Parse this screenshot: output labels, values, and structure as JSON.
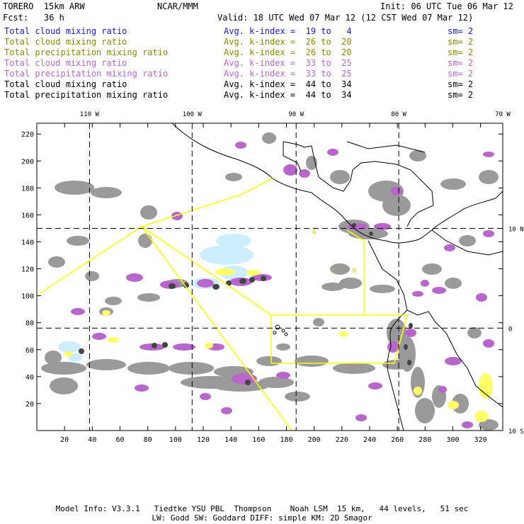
{
  "header": {
    "model": "TORERO  15km ARW",
    "org": "NCAR/MMM",
    "init": "Init: 06 UTC Tue 06 Mar 12",
    "fcst_label": "Fcst:",
    "fcst_value": "36 h",
    "valid": "Valid: 18 UTC Wed 07 Mar 12 (12 CST Wed 07 Mar 12)"
  },
  "legend": [
    {
      "name": "Total cloud mixing ratio",
      "index": "Avg. k-index =  19 to   4",
      "sm": "sm= 2",
      "color": "#1a1acc"
    },
    {
      "name": "Total cloud mixing ratio",
      "index": "Avg. k-index =  26 to  20",
      "sm": "sm= 2",
      "color": "#8a8a00"
    },
    {
      "name": "Total precipitation mixing ratio",
      "index": "Avg. k-index =  26 to  20",
      "sm": "sm= 2",
      "color": "#8a8a00"
    },
    {
      "name": "Total cloud mixing ratio",
      "index": "Avg. k-index =  33 to  25",
      "sm": "sm= 2",
      "color": "#b866cc"
    },
    {
      "name": "Total precipitation mixing ratio",
      "index": "Avg. k-index =  33 to  25",
      "sm": "sm= 2",
      "color": "#b866cc"
    },
    {
      "name": "Total cloud mixing ratio",
      "index": "Avg. k-index =  44 to  34",
      "sm": "sm= 2",
      "color": "#000000"
    },
    {
      "name": "Total precipitation mixing ratio",
      "index": "Avg. k-index =  44 to  34",
      "sm": "sm= 2",
      "color": "#000000"
    }
  ],
  "footer": {
    "line1": "Model Info: V3.3.1   Tiedtke YSU PBL  Thompson    Noah LSM  15 km,   44 levels,   51 sec",
    "line2": "LW: Godd SW: Goddard DIFF: simple KM: 2D Smagor"
  },
  "colors": {
    "gray_cloud": "#9a9a9a",
    "dark_cloud": "#444444",
    "purple": "#b866cc",
    "yellow": "#ffff66",
    "light_blue": "#cceeff",
    "box_line": "#ffff00"
  },
  "chart_data": {
    "type": "heatmap",
    "x_ticks": [
      20,
      40,
      60,
      80,
      100,
      120,
      140,
      160,
      180,
      200,
      220,
      240,
      260,
      280,
      300,
      320
    ],
    "y_ticks": [
      20,
      40,
      60,
      80,
      100,
      120,
      140,
      160,
      180,
      200,
      220
    ],
    "xlim": [
      0,
      336
    ],
    "ylim": [
      0,
      228
    ],
    "lon_labels": [
      {
        "label": "110 W",
        "x": 38
      },
      {
        "label": "100 W",
        "x": 112
      },
      {
        "label": "90 W",
        "x": 187
      },
      {
        "label": "80 W",
        "x": 261
      },
      {
        "label": "70 W",
        "x": 336
      }
    ],
    "lat_labels": [
      {
        "label": "10 N",
        "y": 150
      },
      {
        "label": "0",
        "y": 76
      },
      {
        "label": "10 S",
        "y": 0
      }
    ],
    "grid_lines_x": [
      38,
      112,
      187,
      261
    ],
    "grid_lines_y": [
      76,
      150
    ],
    "markers": [
      {
        "label": "A",
        "x": 200,
        "y": 148
      },
      {
        "label": "C",
        "x": 214,
        "y": 119
      },
      {
        "label": "R",
        "x": 229,
        "y": 119
      }
    ]
  }
}
